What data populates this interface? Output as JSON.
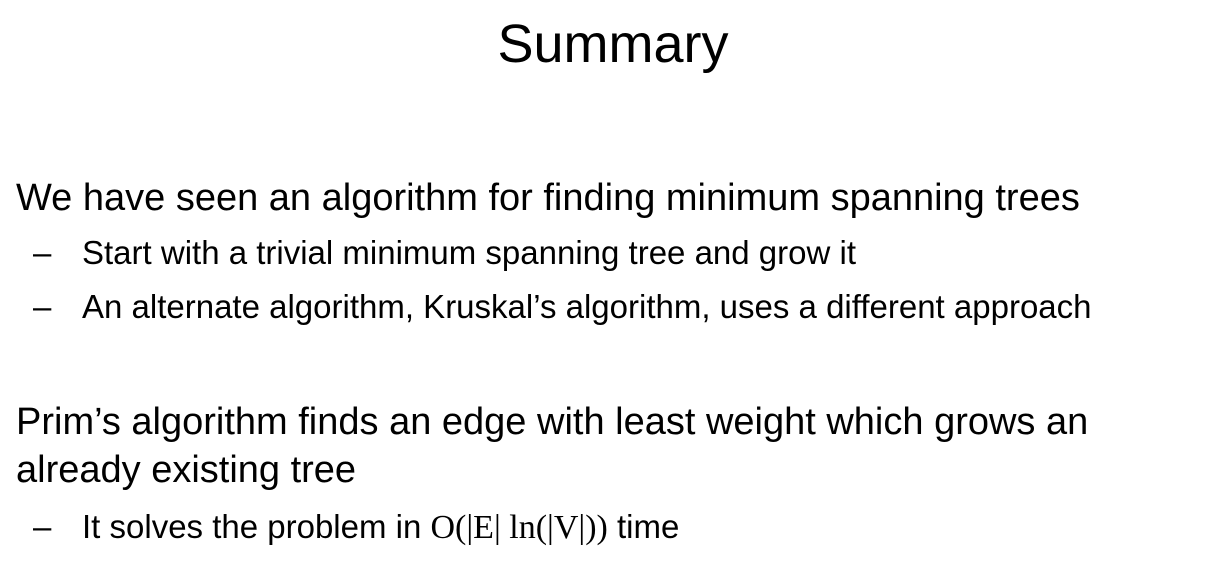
{
  "slide": {
    "title": "Summary",
    "bullets": [
      {
        "text": "We have seen an algorithm for finding minimum spanning trees",
        "subs": [
          {
            "marker": "–",
            "text": "Start with a trivial minimum spanning tree and grow it"
          },
          {
            "marker": "–",
            "text": "An alternate algorithm, Kruskal’s algorithm, uses a different approach"
          }
        ]
      },
      {
        "line1": "Prim’s algorithm finds an edge with least weight which grows an",
        "line2": "already existing tree",
        "subs": [
          {
            "marker": "–",
            "text_before": "It solves the problem in ",
            "math": "O(|E| ln(|V|))",
            "text_after": " time"
          }
        ]
      }
    ]
  }
}
